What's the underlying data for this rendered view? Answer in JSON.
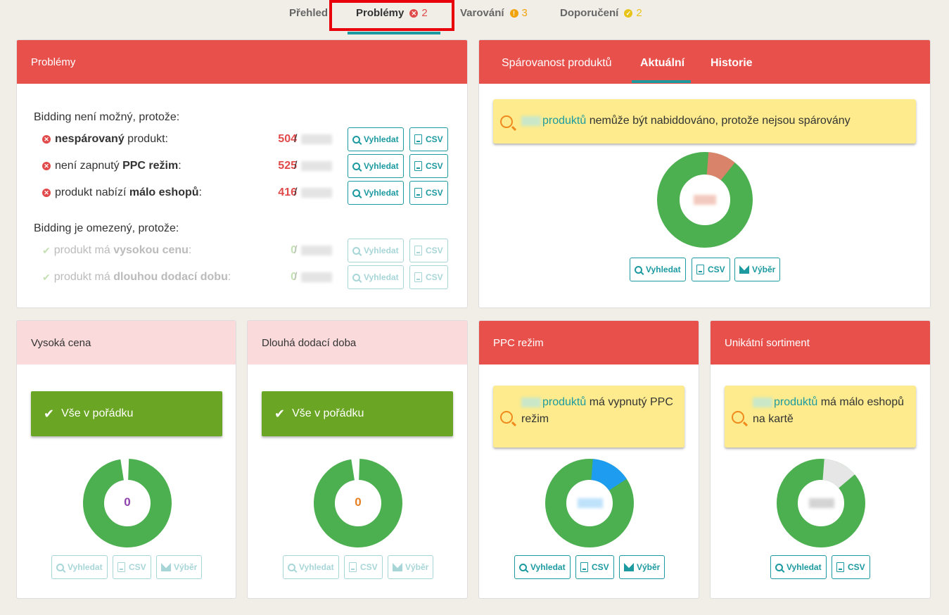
{
  "tabs": [
    {
      "label": "Přehled",
      "count": ""
    },
    {
      "label": "Problémy",
      "count": "2",
      "color": "#e04a4a",
      "icon": "x-circle-icon"
    },
    {
      "label": "Varování",
      "count": "3",
      "color": "#f2a20b",
      "icon": "exclamation-circle-icon"
    },
    {
      "label": "Doporučení",
      "count": "2",
      "color": "#e8c41a",
      "icon": "check-circle-icon"
    }
  ],
  "problems_panel": {
    "title": "Problémy",
    "section1_title": "Bidding není možný, protože:",
    "section2_title": "Bidding je omezený, protože:",
    "rows": [
      {
        "pre": "",
        "bold": "nespárovaný",
        "post": " produkt:",
        "num": "504",
        "slash": "/"
      },
      {
        "pre": "není zapnutý ",
        "bold": "PPC režim",
        "post": ":",
        "num": "525",
        "slash": "/"
      },
      {
        "pre": "produkt nabízí ",
        "bold": "málo eshopů",
        "post": ":",
        "num": "416",
        "slash": "/"
      },
      {
        "pre": "produkt má ",
        "bold": "vysokou cenu",
        "post": ":",
        "num": "0",
        "slash": "/"
      },
      {
        "pre": "produkt má ",
        "bold": "dlouhou dodací dobu",
        "post": ":",
        "num": "0",
        "slash": "/"
      }
    ]
  },
  "buttons": {
    "search": "Vyhledat",
    "csv": "CSV",
    "select": "Výběr"
  },
  "pairing_panel": {
    "tabs": [
      "Spárovanost produktů",
      "Aktuální",
      "Historie"
    ],
    "link": "produktů",
    "message": " nemůže být nabiddováno, protože nejsou spárovány",
    "chart_fraction": 0.12
  },
  "high_price": {
    "title": "Vysoká cena",
    "ok_text": "Vše v pořádku",
    "value": "0",
    "value_color": "#8e44ad"
  },
  "long_delivery": {
    "title": "Dlouhá dodací doba",
    "ok_text": "Vše v pořádku",
    "value": "0",
    "value_color": "#e67e22"
  },
  "ppc": {
    "title": "PPC režim",
    "link": "produktů",
    "message": " má vypnutý PPC režim",
    "chart_fraction": 0.17
  },
  "unique": {
    "title": "Unikátní sortiment",
    "link": "produktů",
    "message": " má málo eshopů na kartě",
    "chart_fraction": 0.15
  },
  "colors": {
    "red": "#e8504c",
    "teal": "#1c9aa0",
    "green": "#4caf50",
    "orange_slice": "#d9836b",
    "blue_slice": "#1e9cf0",
    "grey_slice": "#e6e6e6"
  }
}
